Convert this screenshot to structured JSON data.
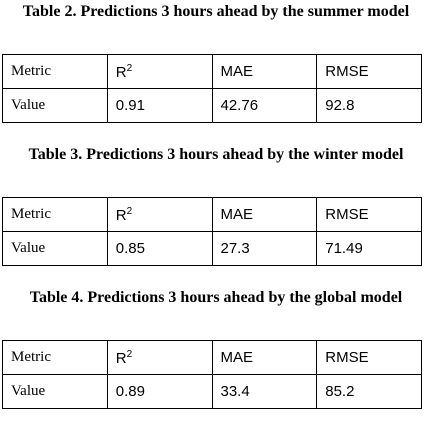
{
  "tables": [
    {
      "title": "Table 2. Predictions 3 hours ahead by the summer model",
      "headers": [
        "Metric",
        {
          "text": "R",
          "sup": "2"
        },
        "MAE",
        "RMSE"
      ],
      "row": [
        "Value",
        "0.91",
        "42.76",
        "92.8"
      ]
    },
    {
      "title": "Table 3. Predictions 3 hours ahead by the winter model",
      "headers": [
        "Metric",
        {
          "text": "R",
          "sup": "2"
        },
        "MAE",
        "RMSE"
      ],
      "row": [
        "Value",
        "0.85",
        "27.3",
        "71.49"
      ]
    },
    {
      "title": "Table 4. Predictions 3 hours ahead by the global model",
      "headers": [
        "Metric",
        {
          "text": "R",
          "sup": "2"
        },
        "MAE",
        "RMSE"
      ],
      "row": [
        "Value",
        "0.89",
        "33.4",
        "85.2"
      ]
    }
  ]
}
